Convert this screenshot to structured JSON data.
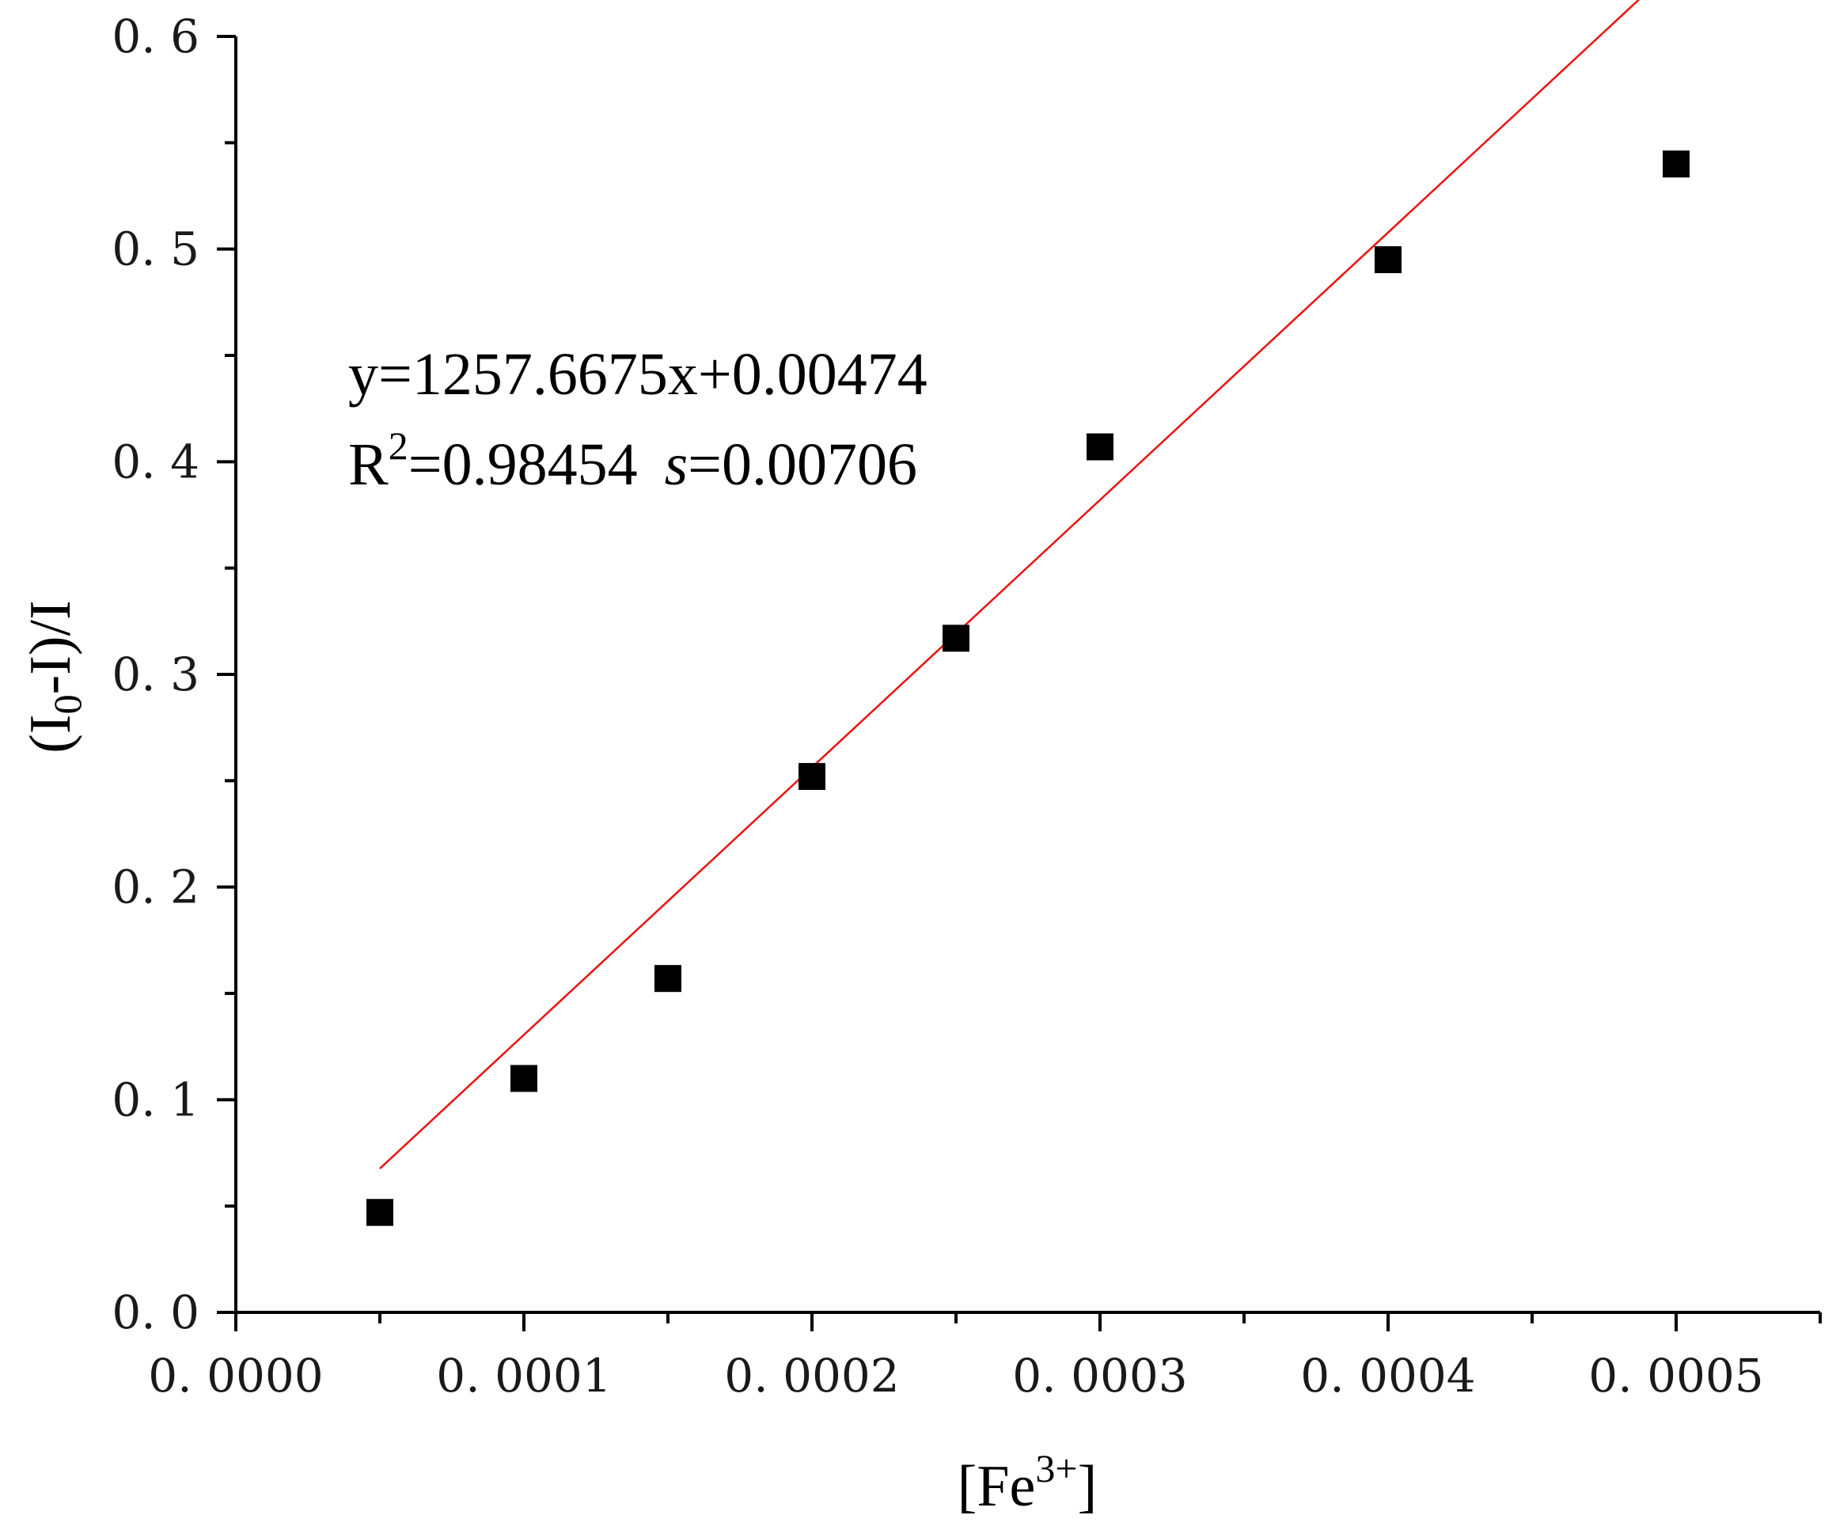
{
  "chart_data": {
    "type": "scatter",
    "title": "",
    "xlabel": {
      "pre": "[Fe",
      "sup": "3+",
      "post": "]"
    },
    "ylabel": {
      "pre": "(I",
      "sub": "0",
      "post": "-I)/I"
    },
    "xlim": [
      0,
      0.00055
    ],
    "ylim": [
      0,
      0.6
    ],
    "x_ticks": [
      0,
      0.0001,
      0.0002,
      0.0003,
      0.0004,
      0.0005
    ],
    "x_tick_labels": [
      "0. 0000",
      "0. 0001",
      "0. 0002",
      "0. 0003",
      "0. 0004",
      "0. 0005"
    ],
    "x_minor_ticks": [
      5e-05,
      0.00015,
      0.00025,
      0.00035,
      0.00045,
      0.00055
    ],
    "y_ticks": [
      0,
      0.1,
      0.2,
      0.3,
      0.4,
      0.5,
      0.6
    ],
    "y_tick_labels": [
      "0. 0",
      "0. 1",
      "0. 2",
      "0. 3",
      "0. 4",
      "0. 5",
      "0. 6"
    ],
    "y_minor_ticks": [
      0.05,
      0.15,
      0.25,
      0.35,
      0.45,
      0.55
    ],
    "grid": false,
    "series": [
      {
        "marker": "square",
        "color": "#000000",
        "x": [
          5e-05,
          0.0001,
          0.00015,
          0.0002,
          0.00025,
          0.0003,
          0.0004,
          0.0005
        ],
        "y": [
          0.047,
          0.11,
          0.157,
          0.252,
          0.317,
          0.407,
          0.495,
          0.54
        ]
      }
    ],
    "fit": {
      "color": "#ee1111",
      "slope": 1257.6675,
      "intercept": 0.00474,
      "x_range": [
        5e-05,
        0.0005
      ]
    },
    "annotation": {
      "line1": "y=1257.6675x+0.00474",
      "line2_r": "R",
      "line2_r_sup": "2",
      "line2_r_value": "=0.98454",
      "line2_s": "s",
      "line2_s_value": "=0.00706"
    }
  }
}
